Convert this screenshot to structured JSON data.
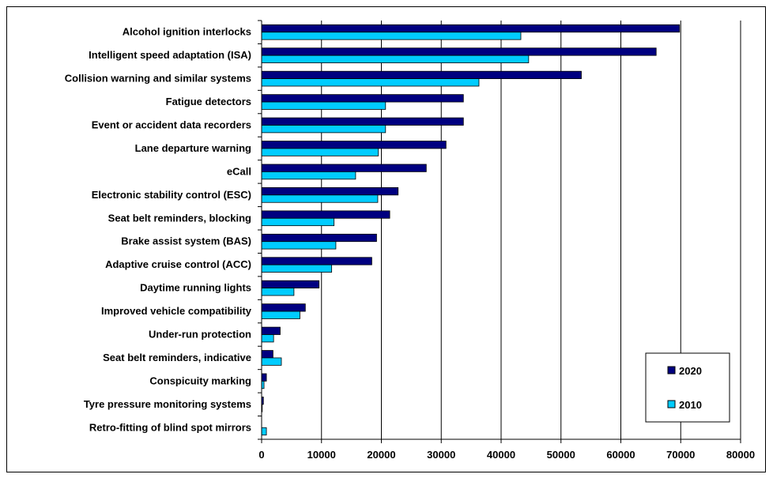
{
  "chart_data": {
    "type": "bar",
    "orientation": "horizontal",
    "categories": [
      "Alcohol ignition interlocks",
      "Intelligent speed adaptation (ISA)",
      "Collision warning and similar systems",
      "Fatigue detectors",
      "Event or accident data recorders",
      "Lane departure warning",
      "eCall",
      "Electronic stability control (ESC)",
      "Seat belt reminders, blocking",
      "Brake assist system (BAS)",
      "Adaptive cruise control (ACC)",
      "Daytime running lights",
      "Improved vehicle compatibility",
      "Under-run protection",
      "Seat belt reminders, indicative",
      "Conspicuity marking",
      "Tyre pressure monitoring systems",
      "Retro-fitting of blind spot mirrors"
    ],
    "series": [
      {
        "name": "2020",
        "color": "#000080",
        "values": [
          69800,
          65900,
          53400,
          33700,
          33700,
          30800,
          27500,
          22800,
          21400,
          19200,
          18400,
          9600,
          7300,
          3100,
          1900,
          800,
          300,
          0
        ]
      },
      {
        "name": "2010",
        "color": "#00CCFF",
        "values": [
          43300,
          44600,
          36300,
          20700,
          20700,
          19500,
          15700,
          19400,
          12100,
          12400,
          11700,
          5400,
          6400,
          2000,
          3300,
          400,
          100,
          800
        ]
      }
    ],
    "xlim": [
      0,
      80000
    ],
    "xticks": [
      "0",
      "10000",
      "20000",
      "30000",
      "40000",
      "50000",
      "60000",
      "70000",
      "80000"
    ],
    "grid": "vertical",
    "legend": {
      "position": "bottom-right",
      "entries": [
        "2020",
        "2010"
      ]
    }
  }
}
